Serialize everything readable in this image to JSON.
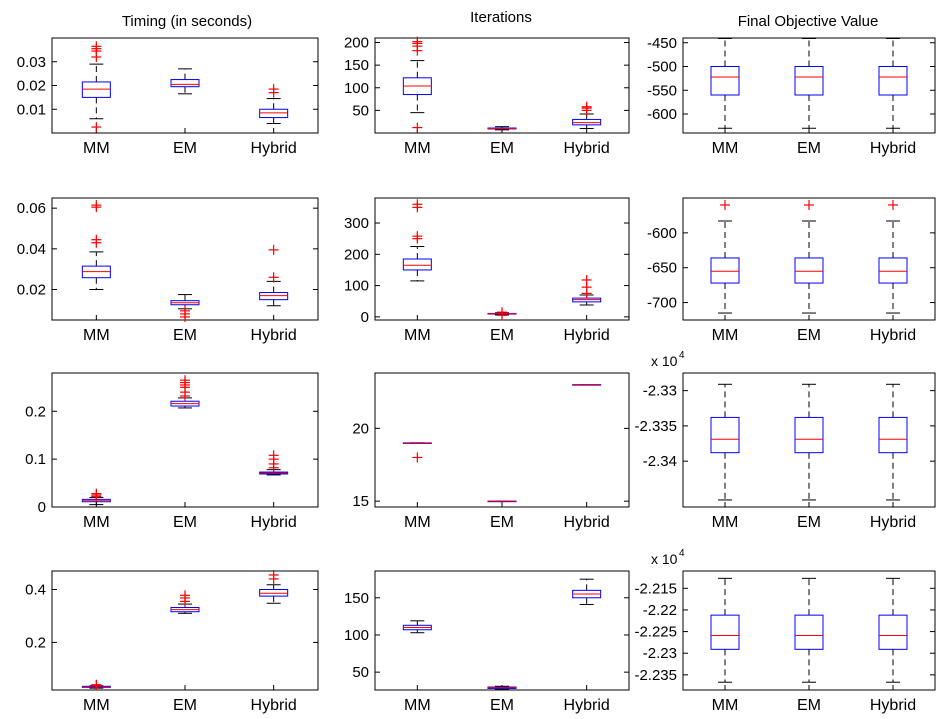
{
  "columns": [
    "Timing (in seconds)",
    "Iterations",
    "Final Objective Value"
  ],
  "chart_data": [
    {
      "type": "box",
      "row": 0,
      "col": 0,
      "categories": [
        "MM",
        "EM",
        "Hybrid"
      ],
      "ylim": [
        0,
        0.04
      ],
      "yticks": [
        0.01,
        0.02,
        0.03
      ],
      "yticklabels": [
        "0.01",
        "0.02",
        "0.03"
      ],
      "boxes": [
        {
          "whisker_low": 0.006,
          "q1": 0.015,
          "median": 0.0185,
          "q3": 0.0215,
          "whisker_high": 0.029,
          "outliers": [
            0.0025,
            0.032,
            0.0345,
            0.0355,
            0.0365
          ]
        },
        {
          "whisker_low": 0.0165,
          "q1": 0.0195,
          "median": 0.0205,
          "q3": 0.0225,
          "whisker_high": 0.027,
          "outliers": []
        },
        {
          "whisker_low": 0.004,
          "q1": 0.0065,
          "median": 0.0085,
          "q3": 0.01,
          "whisker_high": 0.0145,
          "outliers": [
            0.017,
            0.0185
          ]
        }
      ]
    },
    {
      "type": "box",
      "row": 0,
      "col": 1,
      "categories": [
        "MM",
        "EM",
        "Hybrid"
      ],
      "ylim": [
        0,
        210
      ],
      "yticks": [
        50,
        100,
        150,
        200
      ],
      "yticklabels": [
        "50",
        "100",
        "150",
        "200"
      ],
      "boxes": [
        {
          "whisker_low": 45,
          "q1": 85,
          "median": 104,
          "q3": 122,
          "whisker_high": 160,
          "outliers": [
            12,
            182,
            192,
            198,
            202
          ]
        },
        {
          "whisker_low": 7,
          "q1": 9,
          "median": 10,
          "q3": 11,
          "whisker_high": 14,
          "outliers": []
        },
        {
          "whisker_low": 10,
          "q1": 18,
          "median": 23,
          "q3": 30,
          "whisker_high": 42,
          "outliers": [
            50,
            55,
            58
          ]
        }
      ]
    },
    {
      "type": "box",
      "row": 0,
      "col": 2,
      "categories": [
        "MM",
        "EM",
        "Hybrid"
      ],
      "ylim": [
        -640,
        -440
      ],
      "yticks": [
        -600,
        -550,
        -500,
        -450
      ],
      "yticklabels": [
        "-600",
        "-550",
        "-500",
        "-450"
      ],
      "boxes": [
        {
          "whisker_low": -630,
          "q1": -560,
          "median": -522,
          "q3": -500,
          "whisker_high": -441,
          "outliers": []
        },
        {
          "whisker_low": -630,
          "q1": -560,
          "median": -522,
          "q3": -500,
          "whisker_high": -441,
          "outliers": []
        },
        {
          "whisker_low": -630,
          "q1": -560,
          "median": -522,
          "q3": -500,
          "whisker_high": -441,
          "outliers": []
        }
      ]
    },
    {
      "type": "box",
      "row": 1,
      "col": 0,
      "categories": [
        "MM",
        "EM",
        "Hybrid"
      ],
      "ylim": [
        0.005,
        0.065
      ],
      "yticks": [
        0.02,
        0.04,
        0.06
      ],
      "yticklabels": [
        "0.02",
        "0.04",
        "0.06"
      ],
      "boxes": [
        {
          "whisker_low": 0.02,
          "q1": 0.0258,
          "median": 0.0288,
          "q3": 0.0315,
          "whisker_high": 0.0385,
          "outliers": [
            0.043,
            0.0445,
            0.0605,
            0.0615
          ]
        },
        {
          "whisker_low": 0.0105,
          "q1": 0.0125,
          "median": 0.0135,
          "q3": 0.0145,
          "whisker_high": 0.0175,
          "outliers": [
            0.0065,
            0.008,
            0.0095
          ]
        },
        {
          "whisker_low": 0.012,
          "q1": 0.015,
          "median": 0.017,
          "q3": 0.0185,
          "whisker_high": 0.024,
          "outliers": [
            0.026,
            0.0395
          ]
        }
      ]
    },
    {
      "type": "box",
      "row": 1,
      "col": 1,
      "categories": [
        "MM",
        "EM",
        "Hybrid"
      ],
      "ylim": [
        -10,
        380
      ],
      "yticks": [
        0,
        100,
        200,
        300
      ],
      "yticklabels": [
        "0",
        "100",
        "200",
        "300"
      ],
      "boxes": [
        {
          "whisker_low": 115,
          "q1": 150,
          "median": 165,
          "q3": 185,
          "whisker_high": 225,
          "outliers": [
            250,
            258,
            350,
            360
          ]
        },
        {
          "whisker_low": 6,
          "q1": 9,
          "median": 10,
          "q3": 11,
          "whisker_high": 13,
          "outliers": [
            5,
            15
          ]
        },
        {
          "whisker_low": 38,
          "q1": 48,
          "median": 55,
          "q3": 60,
          "whisker_high": 70,
          "outliers": [
            75,
            95,
            118
          ]
        }
      ]
    },
    {
      "type": "box",
      "row": 1,
      "col": 2,
      "categories": [
        "MM",
        "EM",
        "Hybrid"
      ],
      "ylim": [
        -725,
        -550
      ],
      "yticks": [
        -700,
        -650,
        -600
      ],
      "yticklabels": [
        "-700",
        "-650",
        "-600"
      ],
      "boxes": [
        {
          "whisker_low": -715,
          "q1": -672,
          "median": -655,
          "q3": -636,
          "whisker_high": -583,
          "outliers": [
            -560
          ]
        },
        {
          "whisker_low": -715,
          "q1": -672,
          "median": -655,
          "q3": -636,
          "whisker_high": -583,
          "outliers": [
            -560
          ]
        },
        {
          "whisker_low": -715,
          "q1": -672,
          "median": -655,
          "q3": -636,
          "whisker_high": -583,
          "outliers": [
            -560
          ]
        }
      ]
    },
    {
      "type": "box",
      "row": 2,
      "col": 0,
      "categories": [
        "MM",
        "EM",
        "Hybrid"
      ],
      "ylim": [
        0,
        0.28
      ],
      "yticks": [
        0,
        0.1,
        0.2
      ],
      "yticklabels": [
        "0",
        "0.1",
        "0.2"
      ],
      "boxes": [
        {
          "whisker_low": 0.005,
          "q1": 0.011,
          "median": 0.014,
          "q3": 0.016,
          "whisker_high": 0.02,
          "outliers": [
            0.022,
            0.025,
            0.028
          ]
        },
        {
          "whisker_low": 0.207,
          "q1": 0.211,
          "median": 0.216,
          "q3": 0.221,
          "whisker_high": 0.228,
          "outliers": [
            0.232,
            0.24,
            0.25,
            0.255,
            0.26,
            0.265
          ]
        },
        {
          "whisker_low": 0.067,
          "q1": 0.069,
          "median": 0.071,
          "q3": 0.073,
          "whisker_high": 0.078,
          "outliers": [
            0.082,
            0.09,
            0.1,
            0.108
          ]
        }
      ]
    },
    {
      "type": "box",
      "row": 2,
      "col": 1,
      "categories": [
        "MM",
        "EM",
        "Hybrid"
      ],
      "ylim": [
        14.6,
        23.8
      ],
      "yticks": [
        15,
        20
      ],
      "yticklabels": [
        "15",
        "20"
      ],
      "boxes": [
        {
          "whisker_low": 19,
          "q1": 19,
          "median": 19,
          "q3": 19,
          "whisker_high": 19,
          "outliers": [
            18
          ]
        },
        {
          "whisker_low": 15,
          "q1": 15,
          "median": 15,
          "q3": 15,
          "whisker_high": 15,
          "outliers": []
        },
        {
          "whisker_low": 23,
          "q1": 23,
          "median": 23,
          "q3": 23,
          "whisker_high": 23,
          "outliers": []
        }
      ]
    },
    {
      "type": "box",
      "row": 2,
      "col": 2,
      "categories": [
        "MM",
        "EM",
        "Hybrid"
      ],
      "multiplier": "x 10",
      "multiplier_exponent": "4",
      "ylim": [
        -2.3465,
        -2.3275
      ],
      "yticks": [
        -2.34,
        -2.335,
        -2.33
      ],
      "yticklabels": [
        "-2.34",
        "-2.335",
        "-2.33"
      ],
      "boxes": [
        {
          "whisker_low": -2.3455,
          "q1": -2.3388,
          "median": -2.3369,
          "q3": -2.3338,
          "whisker_high": -2.3291,
          "outliers": []
        },
        {
          "whisker_low": -2.3455,
          "q1": -2.3388,
          "median": -2.3369,
          "q3": -2.3338,
          "whisker_high": -2.3291,
          "outliers": []
        },
        {
          "whisker_low": -2.3455,
          "q1": -2.3388,
          "median": -2.3369,
          "q3": -2.3338,
          "whisker_high": -2.3291,
          "outliers": []
        }
      ]
    },
    {
      "type": "box",
      "row": 3,
      "col": 0,
      "categories": [
        "MM",
        "EM",
        "Hybrid"
      ],
      "ylim": [
        0.02,
        0.47
      ],
      "yticks": [
        0.2,
        0.4
      ],
      "yticklabels": [
        "0.2",
        "0.4"
      ],
      "boxes": [
        {
          "whisker_low": 0.027,
          "q1": 0.03,
          "median": 0.032,
          "q3": 0.034,
          "whisker_high": 0.036,
          "outliers": [
            0.038,
            0.04
          ]
        },
        {
          "whisker_low": 0.31,
          "q1": 0.316,
          "median": 0.324,
          "q3": 0.332,
          "whisker_high": 0.345,
          "outliers": [
            0.355,
            0.368,
            0.378
          ]
        },
        {
          "whisker_low": 0.348,
          "q1": 0.375,
          "median": 0.386,
          "q3": 0.4,
          "whisker_high": 0.418,
          "outliers": [
            0.44,
            0.455
          ]
        }
      ]
    },
    {
      "type": "box",
      "row": 3,
      "col": 1,
      "categories": [
        "MM",
        "EM",
        "Hybrid"
      ],
      "ylim": [
        26,
        186
      ],
      "yticks": [
        50,
        100,
        150
      ],
      "yticklabels": [
        "50",
        "100",
        "150"
      ],
      "boxes": [
        {
          "whisker_low": 103,
          "q1": 107,
          "median": 110,
          "q3": 113,
          "whisker_high": 119,
          "outliers": []
        },
        {
          "whisker_low": 27,
          "q1": 28,
          "median": 29,
          "q3": 30,
          "whisker_high": 31,
          "outliers": []
        },
        {
          "whisker_low": 141,
          "q1": 150,
          "median": 155,
          "q3": 160,
          "whisker_high": 175,
          "outliers": []
        }
      ]
    },
    {
      "type": "box",
      "row": 3,
      "col": 2,
      "categories": [
        "MM",
        "EM",
        "Hybrid"
      ],
      "multiplier": "x 10",
      "multiplier_exponent": "4",
      "ylim": [
        -2.2385,
        -2.211
      ],
      "yticks": [
        -2.235,
        -2.23,
        -2.225,
        -2.22,
        -2.215
      ],
      "yticklabels": [
        "-2.235",
        "-2.23",
        "-2.225",
        "-2.22",
        "-2.215"
      ],
      "boxes": [
        {
          "whisker_low": -2.2367,
          "q1": -2.2291,
          "median": -2.2259,
          "q3": -2.2212,
          "whisker_high": -2.2127,
          "outliers": []
        },
        {
          "whisker_low": -2.2367,
          "q1": -2.2291,
          "median": -2.2259,
          "q3": -2.2212,
          "whisker_high": -2.2127,
          "outliers": []
        },
        {
          "whisker_low": -2.2367,
          "q1": -2.2291,
          "median": -2.2259,
          "q3": -2.2212,
          "whisker_high": -2.2127,
          "outliers": []
        }
      ]
    }
  ],
  "colors": {
    "box": "#0000ff",
    "median": "#ff0000",
    "whisker": "#000000",
    "outlier": "#ff0000",
    "axes": "#000000"
  }
}
